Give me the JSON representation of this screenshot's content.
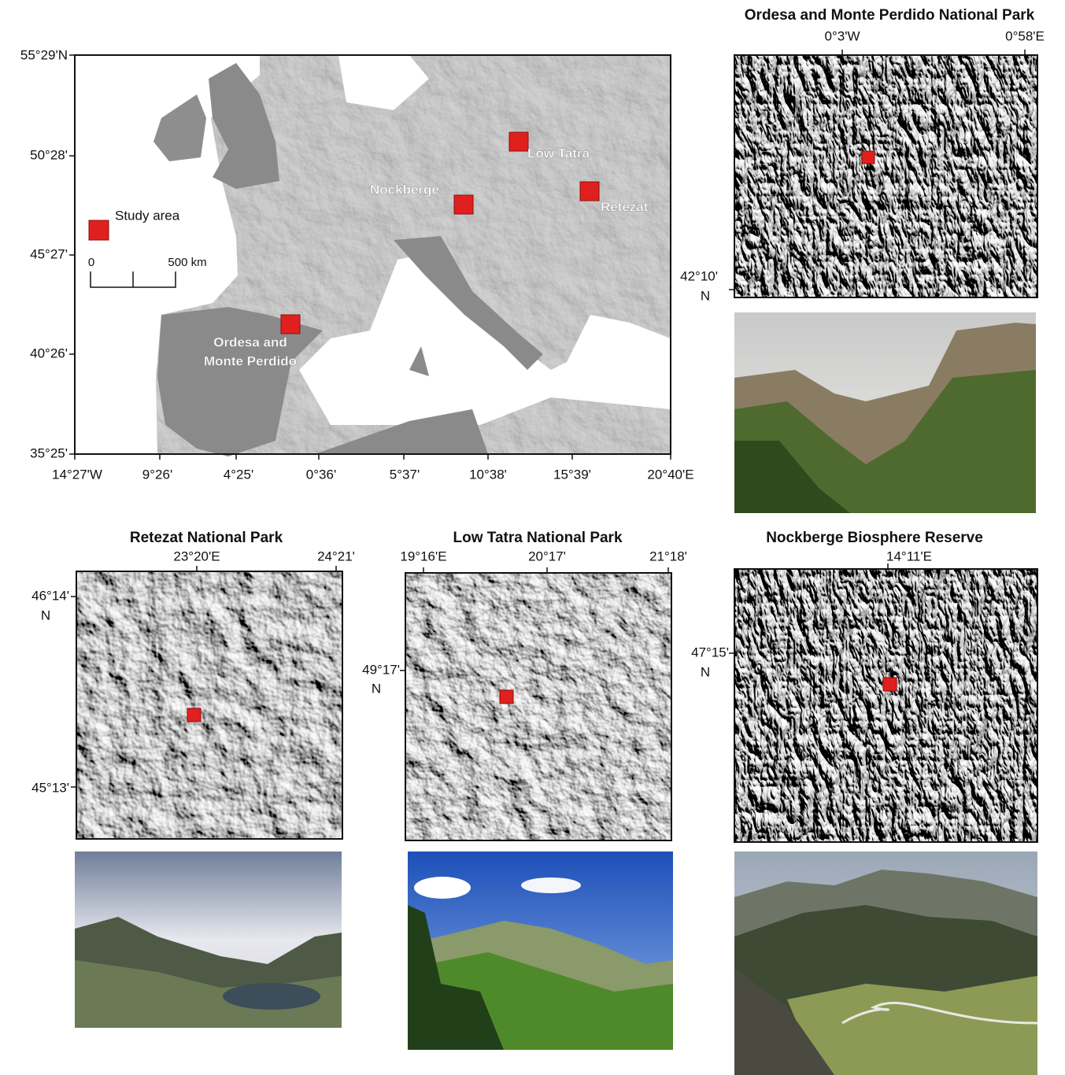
{
  "main_map": {
    "lat_labels": [
      "55°29'N",
      "50°28'",
      "45°27'",
      "40°26'",
      "35°25'"
    ],
    "lon_labels": [
      "14°27'W",
      "9°26'",
      "4°25'",
      "0°36'",
      "5°37'",
      "10°38'",
      "15°39'",
      "20°40'E"
    ],
    "sites": [
      "Low Tatra",
      "Nockberge",
      "Retezat",
      [
        "Ordesa and",
        "Monte Perdido"
      ]
    ],
    "legend": "Study area",
    "scale": [
      "0",
      "500 km"
    ]
  },
  "panels": [
    {
      "title": "Ordesa and Monte Perdido National Park",
      "lon_labels": [
        "0°3'W",
        "0°58'E"
      ],
      "lat_labels": [
        "42°10'"
      ],
      "hemisphere": "N"
    },
    {
      "title": "Retezat National Park",
      "lon_labels": [
        "23°20'E",
        "24°21'"
      ],
      "lat_labels": [
        "46°14'",
        "45°13'"
      ],
      "hemisphere": "N"
    },
    {
      "title": "Low Tatra National Park",
      "lon_labels": [
        "19°16'E",
        "20°17'",
        "21°18'"
      ],
      "lat_labels": [
        "49°17'"
      ],
      "hemisphere": "N"
    },
    {
      "title": "Nockberge Biosphere Reserve",
      "lon_labels": [
        "14°11'E"
      ],
      "lat_labels": [
        "47°15'"
      ],
      "hemisphere": "N"
    }
  ]
}
